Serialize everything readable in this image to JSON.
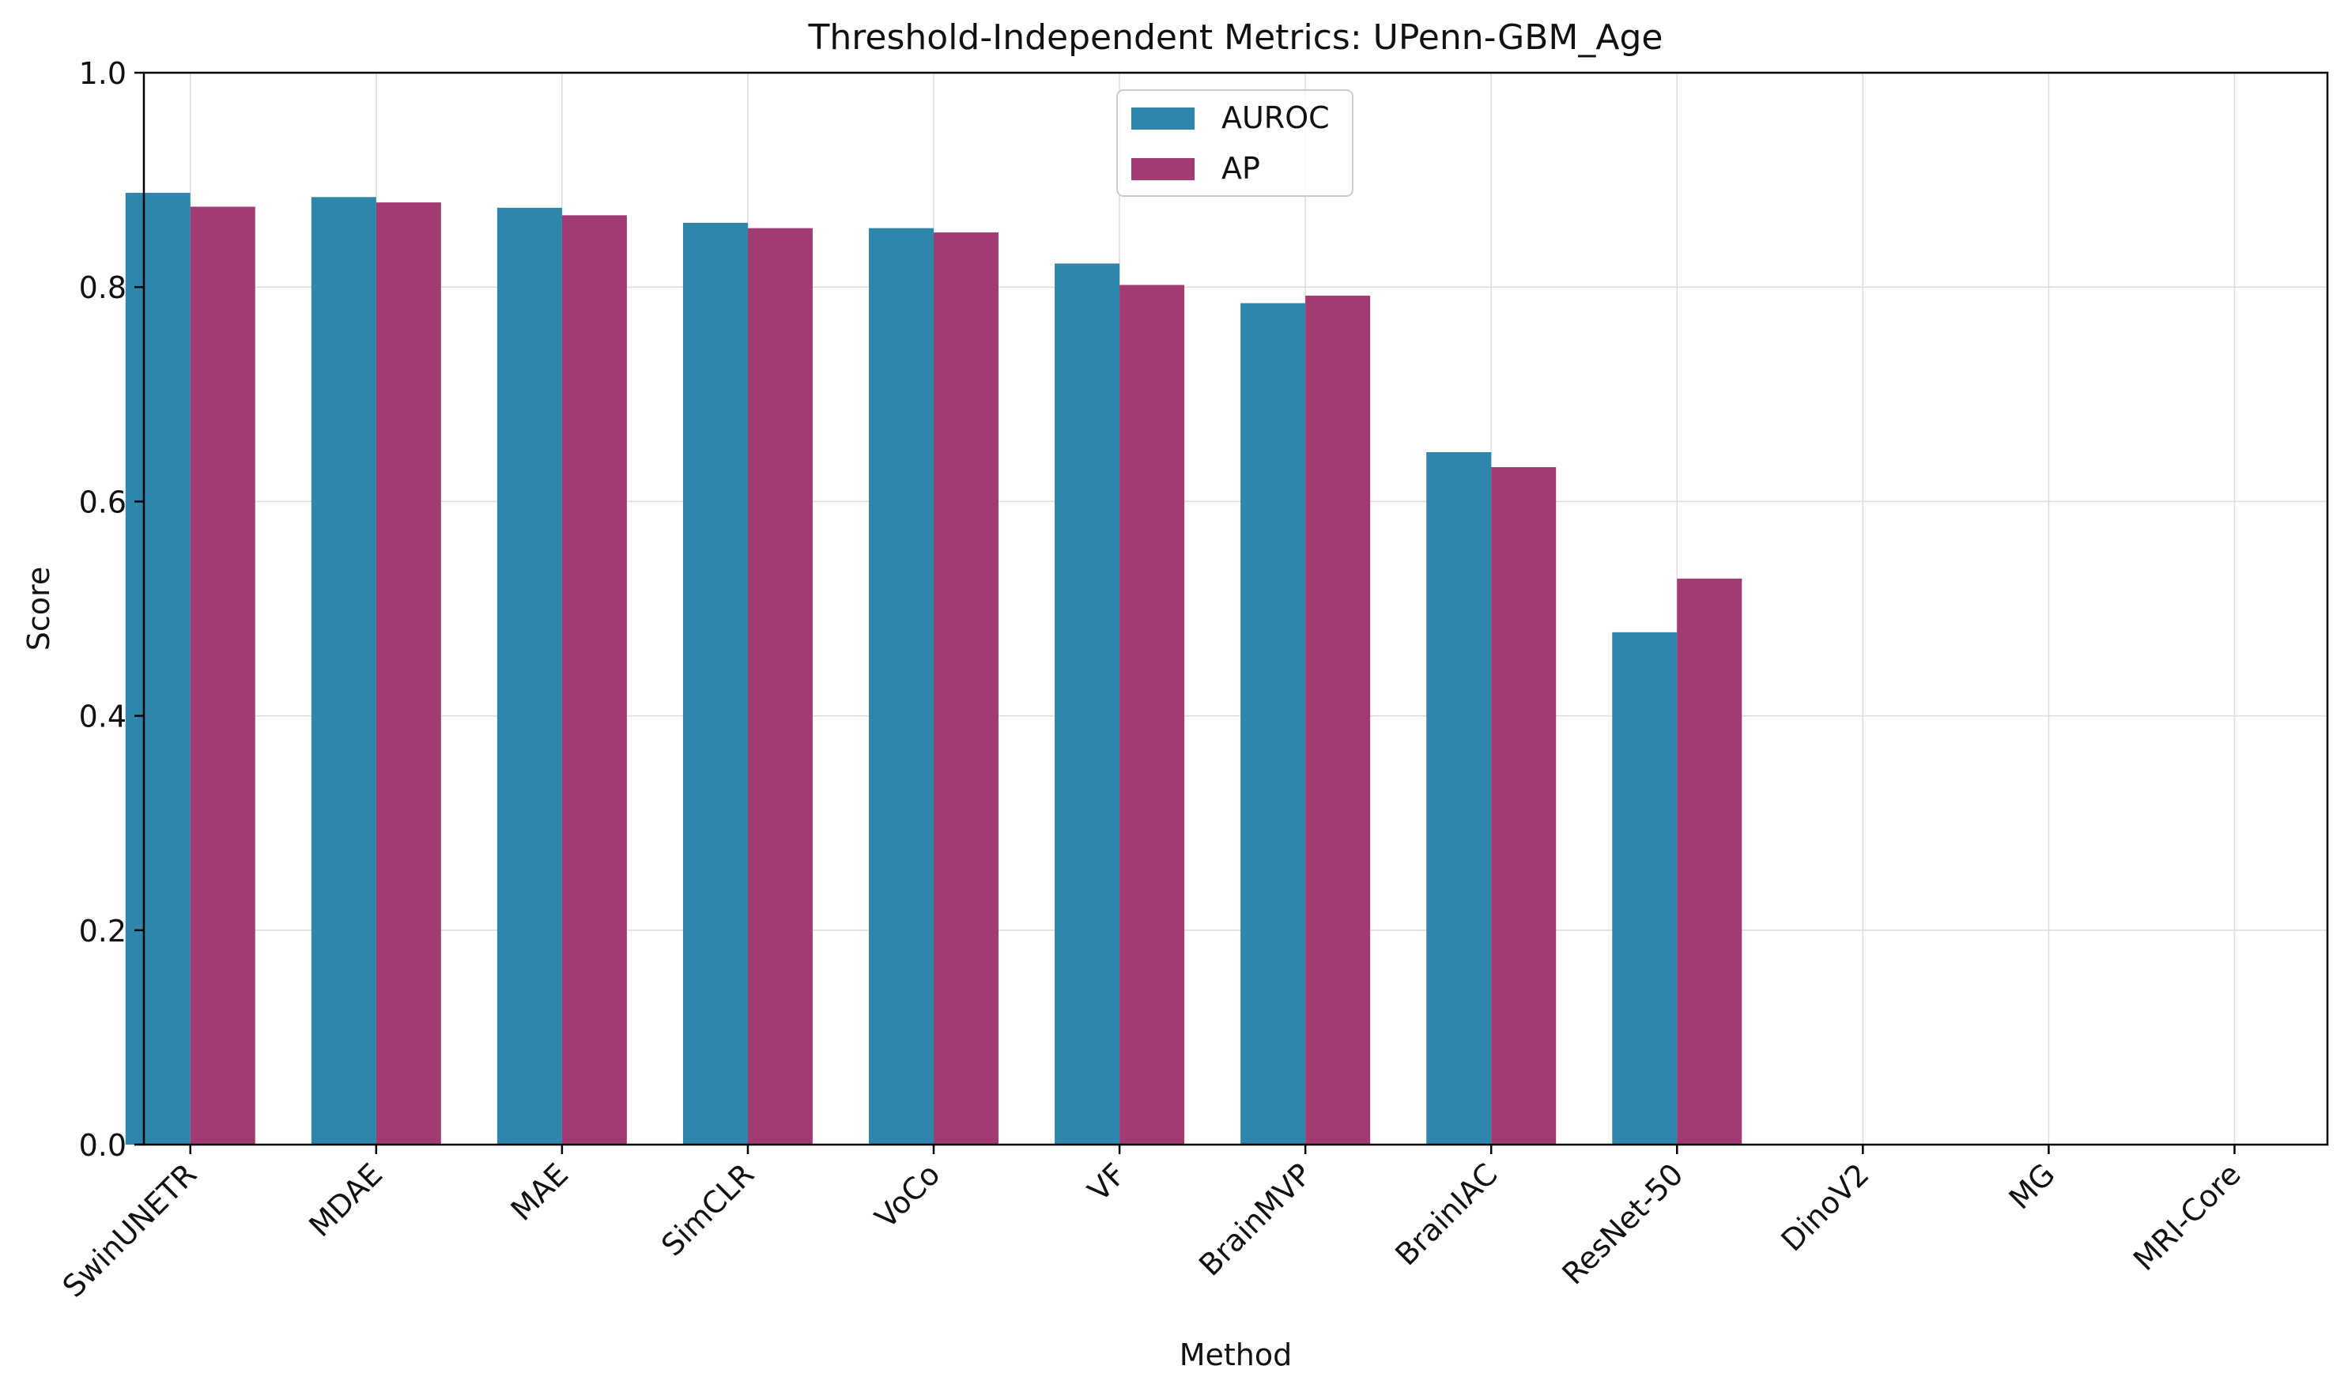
{
  "chart_data": {
    "type": "bar",
    "title": "Threshold-Independent Metrics: UPenn-GBM_Age",
    "xlabel": "Method",
    "ylabel": "Score",
    "ylim": [
      0,
      1.0
    ],
    "yticks": [
      "0.0",
      "0.2",
      "0.4",
      "0.6",
      "0.8",
      "1.0"
    ],
    "grid": true,
    "legend_position": "top-center",
    "categories": [
      "SwinUNETR",
      "MDAE",
      "MAE",
      "SimCLR",
      "VoCo",
      "VF",
      "BrainMVP",
      "BrainIAC",
      "ResNet-50",
      "DinoV2",
      "MG",
      "MRI-Core"
    ],
    "series": [
      {
        "name": "AUROC",
        "color": "#2e86ab",
        "values": [
          0.888,
          0.884,
          0.874,
          0.86,
          0.855,
          0.822,
          0.785,
          0.646,
          0.478,
          null,
          null,
          null
        ]
      },
      {
        "name": "AP",
        "color": "#a23b72",
        "values": [
          0.875,
          0.879,
          0.867,
          0.855,
          0.851,
          0.802,
          0.792,
          0.632,
          0.528,
          null,
          null,
          null
        ]
      }
    ]
  }
}
